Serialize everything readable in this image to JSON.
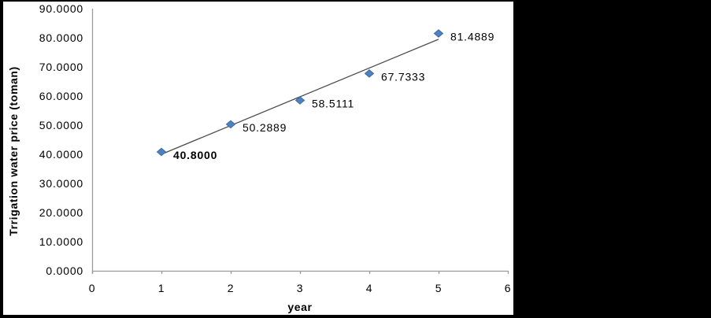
{
  "chart_data": {
    "type": "scatter",
    "title": "",
    "xlabel": "year",
    "ylabel": "Trrigation water price (toman)",
    "x": [
      1,
      2,
      3,
      4,
      5
    ],
    "y": [
      40.8,
      50.2889,
      58.5111,
      67.7333,
      81.4889
    ],
    "point_labels": [
      "40.8000",
      "50.2889",
      "58.5111",
      "67.7333",
      "81.4889"
    ],
    "point_label_bold": [
      true,
      false,
      false,
      false,
      false
    ],
    "xlim": [
      0,
      6
    ],
    "ylim": [
      0,
      90
    ],
    "x_tick_labels": [
      "0",
      "1",
      "2",
      "3",
      "4",
      "5",
      "6"
    ],
    "y_tick_labels": [
      "0.0000",
      "10.0000",
      "20.0000",
      "30.0000",
      "40.0000",
      "50.0000",
      "60.0000",
      "70.0000",
      "80.0000",
      "90.0000"
    ],
    "grid": false,
    "legend": "none",
    "marker": {
      "shape": "diamond",
      "fill": "#4f81bd",
      "stroke": "#3a6ca8"
    },
    "trendline": {
      "type": "linear",
      "x1": 1,
      "y1": 40.0,
      "x2": 5,
      "y2": 79.5,
      "color": "#4d4d4d"
    },
    "colors": {
      "axis": "#9b9b9b",
      "text": "#000000",
      "panel_bg": "#ffffff",
      "canvas_bg": "#000000"
    }
  }
}
